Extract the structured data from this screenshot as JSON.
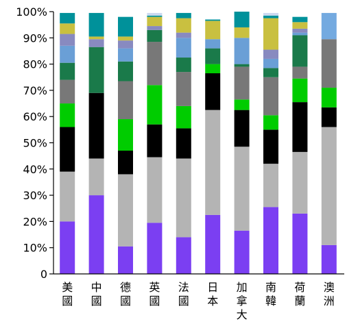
{
  "chart_data": {
    "type": "bar",
    "stacked": true,
    "normalized": true,
    "title": "",
    "xlabel": "",
    "ylabel": "",
    "ylim": [
      0,
      100
    ],
    "yticks": [
      "0",
      "10%",
      "20%",
      "30%",
      "40%",
      "50%",
      "60%",
      "70%",
      "80%",
      "90%",
      "100%"
    ],
    "grid": false,
    "legend": "none",
    "categories": [
      "美國",
      "中國",
      "德國",
      "英國",
      "法國",
      "日本",
      "加拿大",
      "南韓",
      "荷蘭",
      "澳洲"
    ],
    "series": [
      {
        "color": "#7b3ff2",
        "values": [
          20,
          30,
          10.5,
          19.5,
          14,
          22.5,
          16.5,
          25.5,
          23,
          11
        ]
      },
      {
        "color": "#b4b4b4",
        "values": [
          19,
          14,
          27.5,
          25,
          30,
          40,
          32,
          16.5,
          23.5,
          45
        ]
      },
      {
        "color": "#000000",
        "values": [
          17,
          25,
          9,
          12.5,
          11.5,
          14,
          14,
          13,
          19,
          7.5
        ]
      },
      {
        "color": "#00cc00",
        "values": [
          9,
          0,
          12,
          15,
          8.5,
          3.5,
          4,
          5.5,
          9,
          7.5
        ]
      },
      {
        "color": "#787878",
        "values": [
          9,
          0,
          14.5,
          16.5,
          13,
          0,
          12.5,
          14.5,
          4.5,
          18.5
        ]
      },
      {
        "color": "#1a7a4a",
        "values": [
          6.5,
          17.5,
          7.5,
          4.5,
          5.5,
          6,
          1,
          3.5,
          12,
          0
        ]
      },
      {
        "color": "#6a9fd6",
        "values": [
          6.5,
          0,
          5,
          0,
          7.5,
          3.5,
          10,
          3.5,
          1,
          0
        ]
      },
      {
        "color": "#888ac0",
        "values": [
          4.5,
          3,
          3,
          1.5,
          2,
          0,
          0,
          3.5,
          1.5,
          0
        ]
      },
      {
        "color": "#c9c040",
        "values": [
          4,
          1,
          1.5,
          3.5,
          5.5,
          7,
          4,
          12,
          2.5,
          0
        ]
      },
      {
        "color": "#00919a",
        "values": [
          4,
          9,
          7.5,
          0.5,
          2,
          0.5,
          6,
          1,
          2,
          0
        ]
      },
      {
        "color": "#74aae0",
        "values": [
          0,
          0,
          0,
          0,
          0,
          0,
          0,
          0,
          0,
          10
        ]
      },
      {
        "color": "#ccd8f0",
        "values": [
          0,
          0,
          0,
          1,
          0,
          0,
          0,
          1,
          0,
          0
        ]
      }
    ]
  }
}
